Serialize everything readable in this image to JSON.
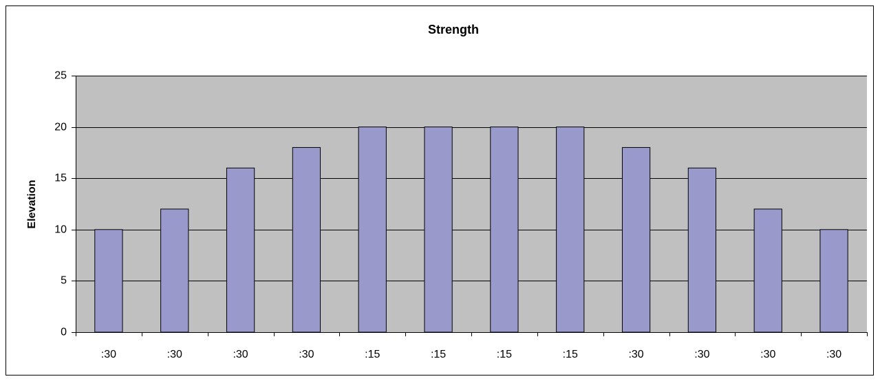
{
  "chart_data": {
    "type": "bar",
    "title": "Strength",
    "y_label": "Elevation",
    "categories": [
      ":30",
      ":30",
      ":30",
      ":30",
      ":15",
      ":15",
      ":15",
      ":15",
      ":30",
      ":30",
      ":30",
      ":30"
    ],
    "values": [
      10,
      12,
      16,
      18,
      20,
      20,
      20,
      20,
      18,
      16,
      12,
      10
    ],
    "color": "#9999cc",
    "plot_background": "#c0c0c0",
    "ylim": [
      0,
      25
    ],
    "yticks": [
      0,
      5,
      10,
      15,
      20,
      25
    ],
    "grid": true
  }
}
